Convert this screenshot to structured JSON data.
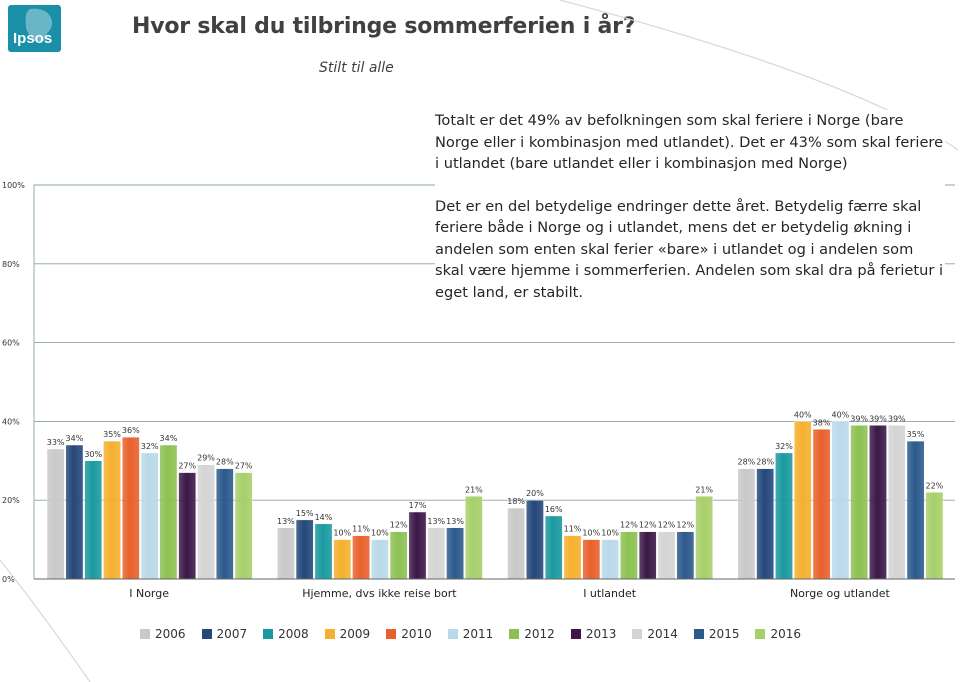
{
  "brand": {
    "logo_text": "Ipsos",
    "logo_color": "#1a8fa8"
  },
  "header": {
    "title": "Hvor skal du tilbringe sommerferien i år?",
    "subtitle": "Stilt til alle"
  },
  "commentary": {
    "paragraph1": "Totalt er det 49% av befolkningen som skal feriere i Norge (bare Norge eller i kombinasjon med utlandet). Det er 43% som skal feriere i utlandet (bare utlandet eller i kombinasjon med Norge)",
    "paragraph2": "Det er en del betydelige endringer dette året. Betydelig færre skal feriere både i Norge og i utlandet, mens det er betydelig økning i andelen som enten skal ferier «bare» i utlandet og i andelen som skal være hjemme i sommerferien. Andelen som skal dra på ferietur i eget land, er stabilt."
  },
  "chart_data": {
    "type": "bar",
    "title": "Hvor skal du tilbringe sommerferien i år?",
    "ylim": [
      0,
      100
    ],
    "y_ticks": [
      "0%",
      "20%",
      "40%",
      "60%",
      "80%",
      "100%"
    ],
    "grid": true,
    "legend_position": "bottom",
    "categories": [
      "I Norge",
      "Hjemme, dvs ikke reise bort",
      "I utlandet",
      "Norge og utlandet"
    ],
    "series": [
      {
        "name": "2006",
        "color": "#c9c9c9",
        "values": [
          33,
          13,
          18,
          28
        ]
      },
      {
        "name": "2007",
        "color": "#24487a",
        "values": [
          34,
          15,
          20,
          28
        ]
      },
      {
        "name": "2008",
        "color": "#1a9aa0",
        "values": [
          30,
          14,
          16,
          32
        ]
      },
      {
        "name": "2009",
        "color": "#f5b02e",
        "values": [
          35,
          10,
          11,
          40
        ]
      },
      {
        "name": "2010",
        "color": "#e8612c",
        "values": [
          36,
          11,
          10,
          38
        ]
      },
      {
        "name": "2011",
        "color": "#b9d9ea",
        "values": [
          32,
          10,
          10,
          40
        ]
      },
      {
        "name": "2012",
        "color": "#8cc152",
        "values": [
          34,
          12,
          12,
          39
        ]
      },
      {
        "name": "2013",
        "color": "#3b1847",
        "values": [
          27,
          17,
          12,
          39
        ]
      },
      {
        "name": "2014",
        "color": "#d4d4d4",
        "values": [
          29,
          13,
          12,
          39
        ]
      },
      {
        "name": "2015",
        "color": "#2c5a8c",
        "values": [
          28,
          13,
          12,
          35
        ]
      },
      {
        "name": "2016",
        "color": "#a7cf6a",
        "values": [
          27,
          21,
          21,
          22
        ]
      }
    ]
  }
}
